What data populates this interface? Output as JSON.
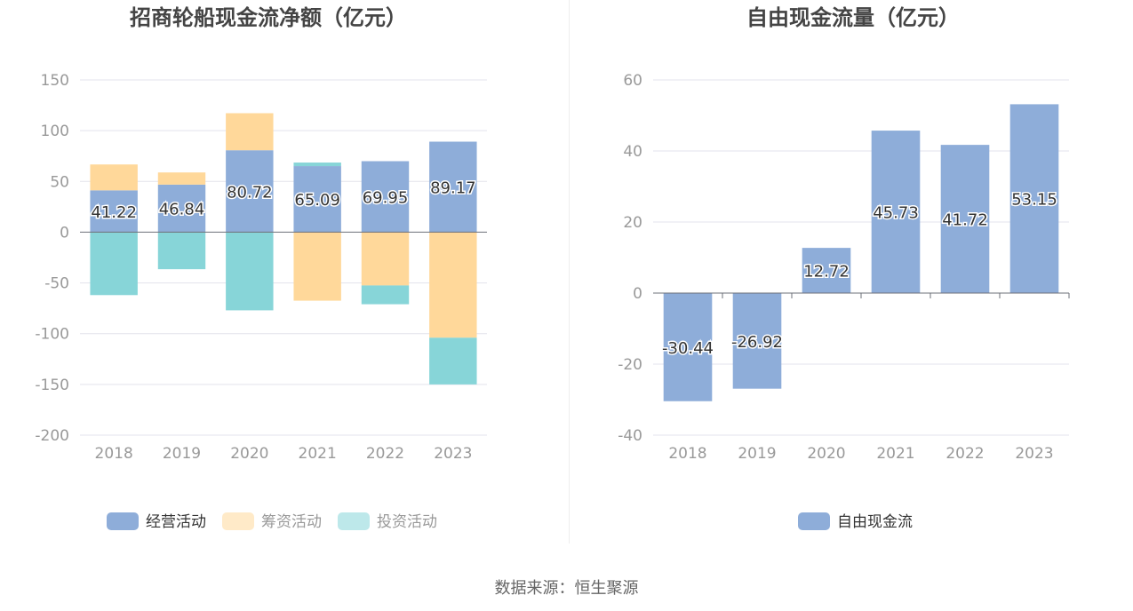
{
  "colors": {
    "operating": "#8eadd9",
    "financing": "#ffd89a",
    "investing": "#87d5d8",
    "free_cash_flow": "#8eadd9",
    "title": "#444444",
    "axis_text": "#999999",
    "grid": "#e3e3ec"
  },
  "source_text": "数据来源：恒生聚源",
  "chart_data": [
    {
      "type": "bar",
      "stacked": true,
      "title": "招商轮船现金流净额（亿元）",
      "categories": [
        "2018",
        "2019",
        "2020",
        "2021",
        "2022",
        "2023"
      ],
      "ylim": [
        -200,
        150
      ],
      "yticks": [
        "150",
        "100",
        "50",
        "0",
        "-50",
        "-100",
        "-150",
        "-200"
      ],
      "grid": true,
      "legend_position": "bottom",
      "series": [
        {
          "name": "经营活动",
          "values": [
            41.22,
            46.84,
            80.72,
            65.09,
            69.95,
            89.17
          ],
          "labels": [
            "41.22",
            "46.84",
            "80.72",
            "65.09",
            "69.95",
            "89.17"
          ]
        },
        {
          "name": "筹资活动",
          "values": [
            25.5,
            12.0,
            36.5,
            -67.5,
            -52.5,
            -104
          ]
        },
        {
          "name": "投资活动",
          "values": [
            -62,
            -36.5,
            -77,
            3.5,
            -18.5,
            -46
          ]
        }
      ]
    },
    {
      "type": "bar",
      "title": "自由现金流量（亿元）",
      "categories": [
        "2018",
        "2019",
        "2020",
        "2021",
        "2022",
        "2023"
      ],
      "ylim": [
        -40,
        60
      ],
      "yticks": [
        "60",
        "40",
        "20",
        "0",
        "-20",
        "-40"
      ],
      "grid": true,
      "legend_position": "bottom",
      "series": [
        {
          "name": "自由现金流",
          "values": [
            -30.44,
            -26.92,
            12.72,
            45.73,
            41.72,
            53.15
          ],
          "labels": [
            "-30.44",
            "-26.92",
            "12.72",
            "45.73",
            "41.72",
            "53.15"
          ]
        }
      ]
    }
  ]
}
